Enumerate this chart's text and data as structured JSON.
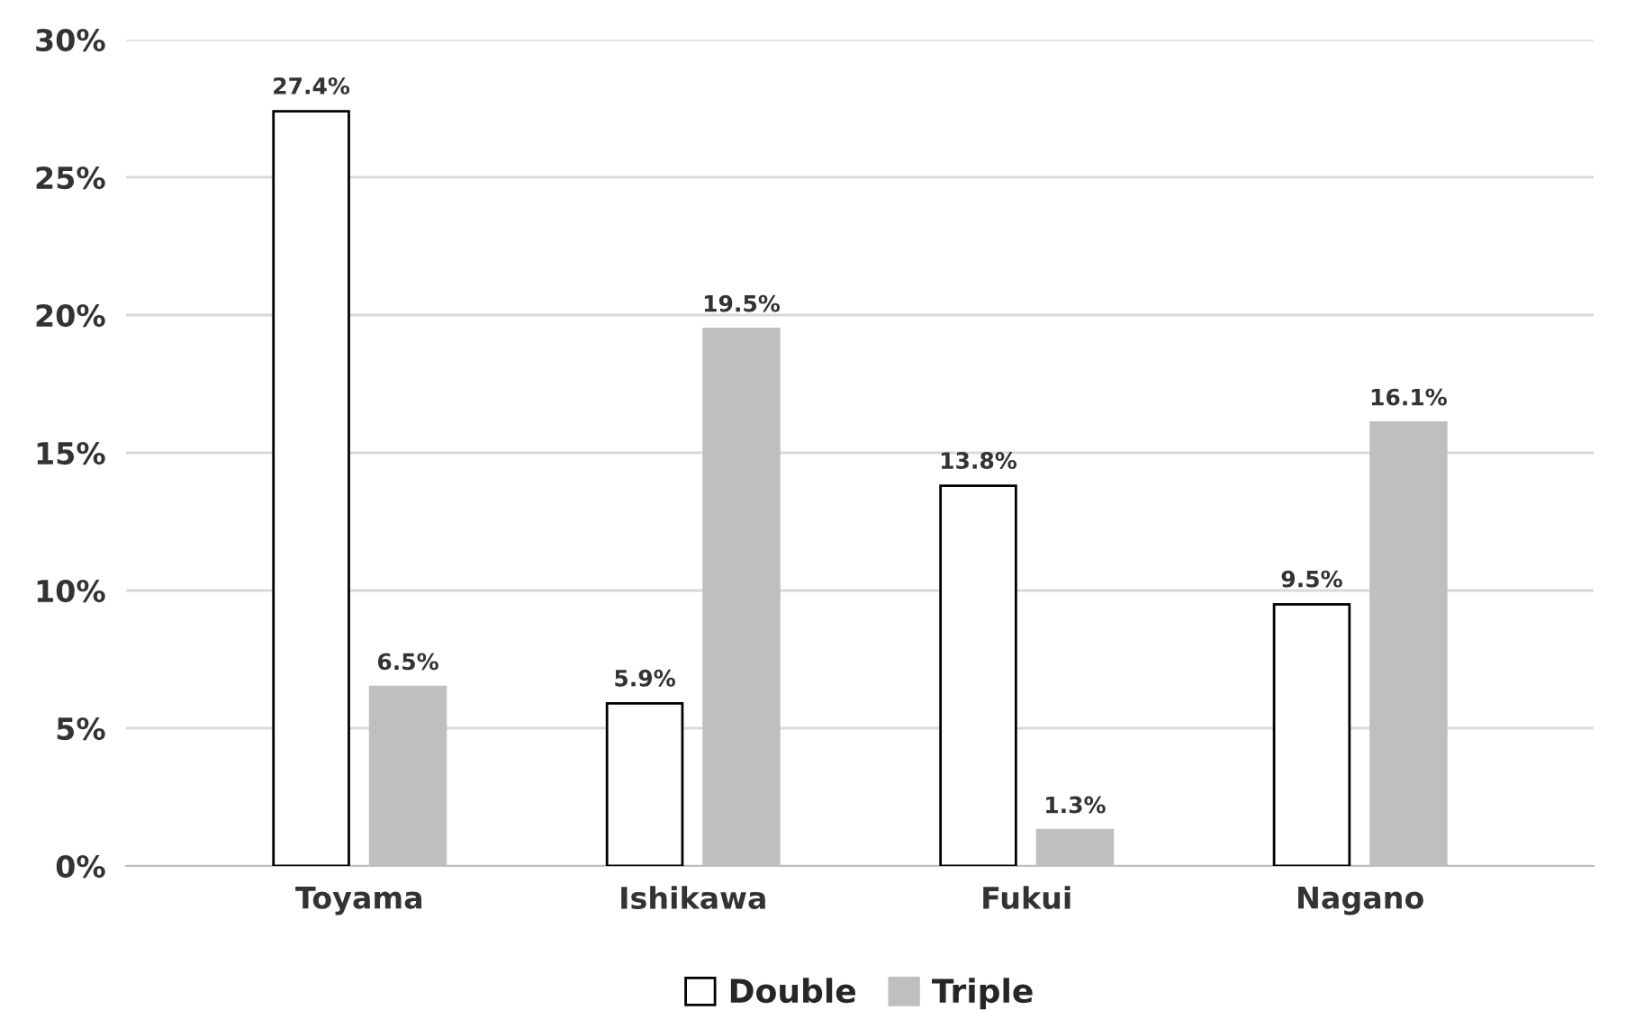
{
  "chart_data": {
    "type": "bar",
    "categories": [
      "Toyama",
      "Ishikawa",
      "Fukui",
      "Nagano"
    ],
    "series": [
      {
        "name": "Double",
        "color": "#ffffff",
        "values": [
          27.4,
          5.9,
          13.8,
          9.5
        ],
        "value_labels": [
          "27.4%",
          "5.9%",
          "13.8%",
          "9.5%"
        ]
      },
      {
        "name": "Triple",
        "color": "#bfbfbf",
        "values": [
          6.5,
          19.5,
          1.3,
          16.1
        ],
        "value_labels": [
          "6.5%",
          "19.5%",
          "1.3%",
          "16.1%"
        ]
      }
    ],
    "ylim": [
      0,
      30
    ],
    "yticks": [
      {
        "value": 0,
        "label": "0%"
      },
      {
        "value": 5,
        "label": "5%"
      },
      {
        "value": 10,
        "label": "10%"
      },
      {
        "value": 15,
        "label": "15%"
      },
      {
        "value": 20,
        "label": "20%"
      },
      {
        "value": 25,
        "label": "25%"
      },
      {
        "value": 30,
        "label": "30%"
      }
    ],
    "grid": "y",
    "legend": "bottom"
  }
}
